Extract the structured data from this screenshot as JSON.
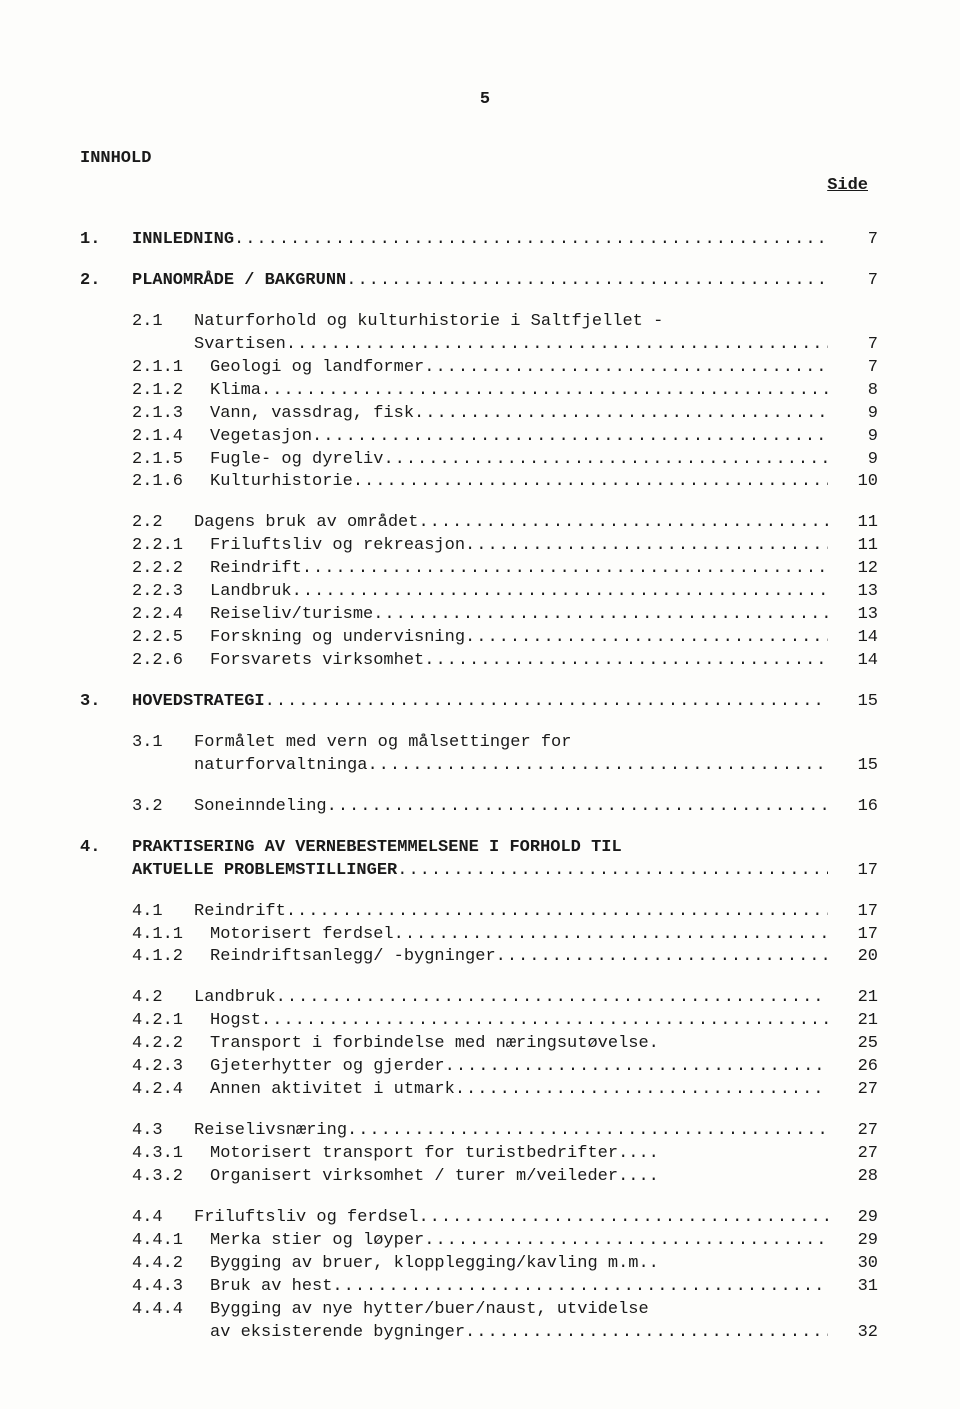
{
  "page_number": "5",
  "title": "INNHOLD",
  "side_label": "Side",
  "entries": [
    {
      "level": 0,
      "num": "1.",
      "label": "INNLEDNING",
      "page": "7",
      "spacing": "bigspaced",
      "dots": true
    },
    {
      "level": 0,
      "num": "2.",
      "label": "PLANOMRÅDE / BAKGRUNN",
      "page": "7",
      "spacing": "spaced",
      "dots": true
    },
    {
      "level": 1,
      "num": "2.1",
      "label": "Naturforhold og kulturhistorie i Saltfjellet -",
      "page": "",
      "spacing": "spaced",
      "dots": false
    },
    {
      "level": "cont1",
      "label": "Svartisen",
      "page": "7",
      "dots": true
    },
    {
      "level": 2,
      "num": "2.1.1",
      "label": "Geologi og landformer",
      "page": "7",
      "dots": true
    },
    {
      "level": 2,
      "num": "2.1.2",
      "label": "Klima",
      "page": "8",
      "dots": true
    },
    {
      "level": 2,
      "num": "2.1.3",
      "label": "Vann, vassdrag, fisk",
      "page": "9",
      "dots": true
    },
    {
      "level": 2,
      "num": "2.1.4",
      "label": "Vegetasjon",
      "page": "9",
      "dots": true
    },
    {
      "level": 2,
      "num": "2.1.5",
      "label": "Fugle- og dyreliv",
      "page": "9",
      "dots": true
    },
    {
      "level": 2,
      "num": "2.1.6",
      "label": "Kulturhistorie",
      "page": "10",
      "dots": true
    },
    {
      "level": 1,
      "num": "2.2",
      "label": "Dagens bruk av området",
      "page": "11",
      "spacing": "spaced",
      "dots": true
    },
    {
      "level": 2,
      "num": "2.2.1",
      "label": "Friluftsliv og rekreasjon",
      "page": "11",
      "dots": true
    },
    {
      "level": 2,
      "num": "2.2.2",
      "label": "Reindrift",
      "page": "12",
      "dots": true
    },
    {
      "level": 2,
      "num": "2.2.3",
      "label": "Landbruk",
      "page": "13",
      "dots": true
    },
    {
      "level": 2,
      "num": "2.2.4",
      "label": "Reiseliv/turisme",
      "page": "13",
      "dots": true
    },
    {
      "level": 2,
      "num": "2.2.5",
      "label": "Forskning og undervisning",
      "page": "14",
      "dots": true
    },
    {
      "level": 2,
      "num": "2.2.6",
      "label": "Forsvarets virksomhet",
      "page": "14",
      "dots": true
    },
    {
      "level": 0,
      "num": "3.",
      "label": "HOVEDSTRATEGI",
      "page": "15",
      "spacing": "spaced",
      "dots": true
    },
    {
      "level": 1,
      "num": "3.1",
      "label": "Formålet med vern og målsettinger for",
      "page": "",
      "spacing": "spaced",
      "dots": false
    },
    {
      "level": "cont1",
      "label": "naturforvaltninga",
      "page": "15",
      "dots": true
    },
    {
      "level": 1,
      "num": "3.2",
      "label": "Soneinndeling",
      "page": "16",
      "spacing": "spaced",
      "dots": true
    },
    {
      "level": 0,
      "num": "4.",
      "label": "PRAKTISERING AV VERNEBESTEMMELSENE I FORHOLD TIL",
      "page": "",
      "spacing": "spaced",
      "dots": false
    },
    {
      "level": "cont0",
      "label": "AKTUELLE PROBLEMSTILLINGER",
      "page": "17",
      "dots": true
    },
    {
      "level": 1,
      "num": "4.1",
      "label": "Reindrift",
      "page": "17",
      "spacing": "spaced",
      "dots": true
    },
    {
      "level": 2,
      "num": "4.1.1",
      "label": "Motorisert ferdsel",
      "page": "17",
      "dots": true
    },
    {
      "level": 2,
      "num": "4.1.2",
      "label": "Reindriftsanlegg/ -bygninger",
      "page": "20",
      "dots": true
    },
    {
      "level": 1,
      "num": "4.2",
      "label": "Landbruk",
      "page": "21",
      "spacing": "spaced",
      "dots": true
    },
    {
      "level": 2,
      "num": "4.2.1",
      "label": "Hogst",
      "page": "21",
      "dots": true
    },
    {
      "level": 2,
      "num": "4.2.2",
      "label": "Transport i forbindelse med næringsutøvelse.",
      "page": "25",
      "dots": false
    },
    {
      "level": 2,
      "num": "4.2.3",
      "label": "Gjeterhytter og gjerder",
      "page": "26",
      "dots": true
    },
    {
      "level": 2,
      "num": "4.2.4",
      "label": "Annen aktivitet i utmark",
      "page": "27",
      "dots": true
    },
    {
      "level": 1,
      "num": "4.3",
      "label": "Reiselivsnæring",
      "page": "27",
      "spacing": "spaced",
      "dots": true
    },
    {
      "level": 2,
      "num": "4.3.1",
      "label": "Motorisert transport for turistbedrifter....",
      "page": "27",
      "dots": false
    },
    {
      "level": 2,
      "num": "4.3.2",
      "label": "Organisert virksomhet / turer m/veileder....",
      "page": "28",
      "dots": false
    },
    {
      "level": 1,
      "num": "4.4",
      "label": "Friluftsliv og ferdsel",
      "page": "29",
      "spacing": "spaced",
      "dots": true
    },
    {
      "level": 2,
      "num": "4.4.1",
      "label": "Merka stier og løyper",
      "page": "29",
      "dots": true
    },
    {
      "level": 2,
      "num": "4.4.2",
      "label": "Bygging av bruer, klopplegging/kavling m.m..",
      "page": "30",
      "dots": false
    },
    {
      "level": 2,
      "num": "4.4.3",
      "label": "Bruk av hest",
      "page": "31",
      "dots": true
    },
    {
      "level": 2,
      "num": "4.4.4",
      "label": "Bygging av nye hytter/buer/naust, utvidelse",
      "page": "",
      "dots": false
    },
    {
      "level": "cont2",
      "label": "av eksisterende bygninger",
      "page": "32",
      "dots": true
    }
  ]
}
